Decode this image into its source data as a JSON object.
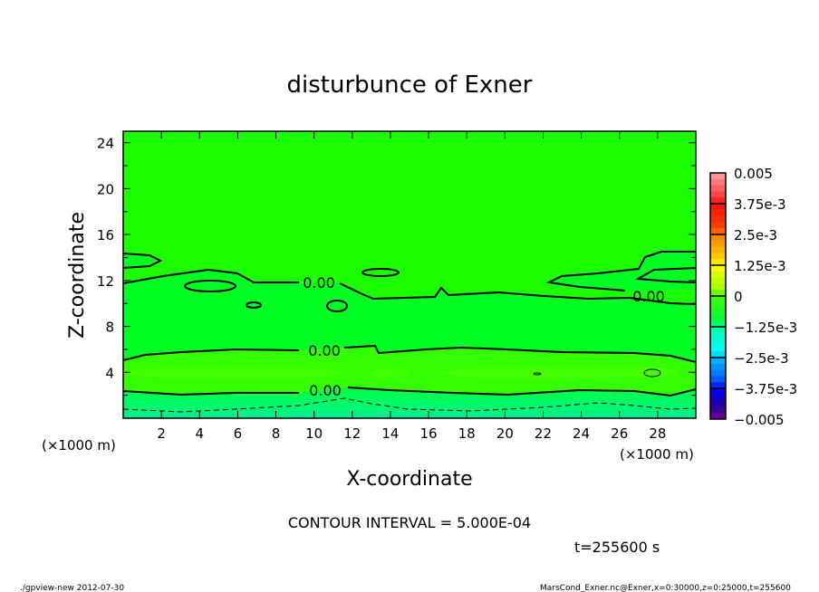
{
  "chart_data": {
    "type": "heatmap",
    "subtype": "filled-contour",
    "title": "disturbunce of Exner",
    "xlabel": "X-coordinate",
    "ylabel": "Z-coordinate",
    "x_unit_left": "(×1000 m)",
    "x_unit_right": "(×1000 m)",
    "xlim": [
      0,
      30
    ],
    "ylim": [
      0,
      25
    ],
    "x_ticks": [
      2,
      4,
      6,
      8,
      10,
      12,
      14,
      16,
      18,
      20,
      22,
      24,
      26,
      28
    ],
    "y_ticks": [
      4,
      8,
      12,
      16,
      20,
      24
    ],
    "colorbar": {
      "range": [
        -0.005,
        0.005
      ],
      "labels": [
        "0.005",
        "3.75e-3",
        "2.5e-3",
        "1.25e-3",
        "0",
        "-1.25e-3",
        "-2.5e-3",
        "-3.75e-3",
        "-0.005"
      ]
    },
    "contour_labels": [
      "0.00",
      "0.00",
      "0.00",
      "0.00"
    ],
    "contour_interval_text": "CONTOUR INTERVAL = 5.000E-04",
    "time_text": "t=255600 s"
  },
  "footer": {
    "left": "./gpview-new  2012-07-30",
    "right": "MarsCond_Exner.nc@Exner,x=0:30000,z=0:25000,t=255600"
  }
}
